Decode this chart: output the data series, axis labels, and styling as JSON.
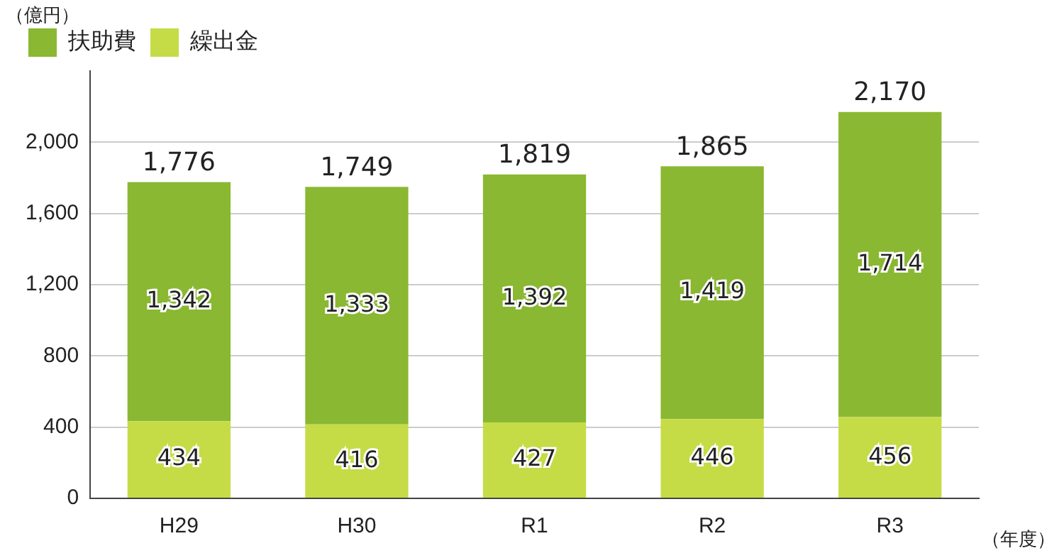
{
  "chart_data": {
    "type": "bar",
    "stacked": true,
    "ylabel": "（億円）",
    "xlabel": "（年度）",
    "categories": [
      "H29",
      "H30",
      "R1",
      "R2",
      "R3"
    ],
    "series": [
      {
        "name": "繰出金",
        "color": "#c5dc47",
        "values": [
          434,
          416,
          427,
          446,
          456
        ],
        "value_labels": [
          "434",
          "416",
          "427",
          "446",
          "456"
        ]
      },
      {
        "name": "扶助費",
        "color": "#8ab832",
        "values": [
          1342,
          1333,
          1392,
          1419,
          1714
        ],
        "value_labels": [
          "1,342",
          "1,333",
          "1,392",
          "1,419",
          "1,714"
        ]
      }
    ],
    "totals": [
      "1,776",
      "1,749",
      "1,819",
      "1,865",
      "2,170"
    ],
    "ylim": [
      0,
      2400
    ],
    "yticks": [
      0,
      400,
      800,
      {
        "value": 1200,
        "label": "1,200"
      },
      {
        "value": 1600,
        "label": "1,600"
      },
      {
        "value": 2000,
        "label": "2,000"
      }
    ],
    "grid": "y",
    "legend": "top left"
  }
}
